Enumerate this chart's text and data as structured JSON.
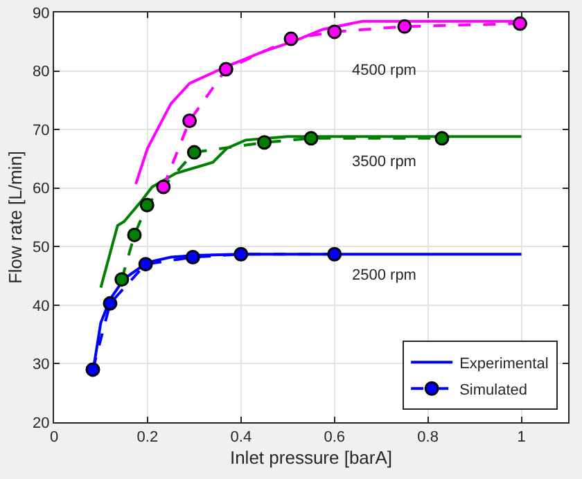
{
  "chart_data": {
    "type": "line",
    "xlabel": "Inlet pressure [barA]",
    "ylabel": "Flow rate [L/min]",
    "xlim": [
      0,
      1.1
    ],
    "xticks": [
      0,
      0.2,
      0.4,
      0.6,
      0.8,
      1
    ],
    "ylim": [
      20,
      90
    ],
    "yticks": [
      20,
      30,
      40,
      50,
      60,
      70,
      80,
      90
    ],
    "grid": true,
    "legend": "bottom right",
    "series": [
      {
        "name": "Experimental",
        "color": "#0000ff",
        "line_style": "solid",
        "marker": "none",
        "x": [
          0.085,
          0.1,
          0.12,
          0.15,
          0.2,
          0.25,
          0.3,
          0.4,
          0.6,
          1.0
        ],
        "values": [
          29.5,
          37,
          41,
          44.5,
          47.3,
          48.2,
          48.5,
          48.7,
          48.7,
          48.7
        ]
      },
      {
        "name": "Simulated",
        "color": "#0000ff",
        "line_style": "dashed",
        "marker": "circle",
        "x": [
          0.083,
          0.12,
          0.196,
          0.297,
          0.4,
          0.6
        ],
        "values": [
          29,
          40.3,
          47,
          48.2,
          48.7,
          48.7
        ]
      },
      {
        "color": "#008000",
        "line_style": "solid",
        "marker": "none",
        "x": [
          0.1,
          0.136,
          0.15,
          0.187,
          0.21,
          0.26,
          0.34,
          0.37,
          0.41,
          0.5,
          1.0
        ],
        "values": [
          43,
          53.6,
          54.3,
          57.8,
          60.2,
          62.5,
          64.4,
          66.8,
          68.2,
          68.8,
          68.8
        ]
      },
      {
        "color": "#008000",
        "line_style": "dashed",
        "marker": "circle",
        "x": [
          0.145,
          0.172,
          0.199,
          0.3,
          0.45,
          0.55,
          0.83
        ],
        "values": [
          44.4,
          52,
          57.1,
          66.1,
          67.8,
          68.5,
          68.5
        ]
      },
      {
        "color": "#ff00ff",
        "line_style": "solid",
        "marker": "none",
        "x": [
          0.175,
          0.2,
          0.25,
          0.29,
          0.37,
          0.45,
          0.51,
          0.575,
          0.66,
          1.0
        ],
        "values": [
          60.7,
          66.8,
          74.4,
          77.9,
          80.8,
          83.4,
          85,
          87.1,
          88.5,
          88.5
        ]
      },
      {
        "color": "#ff00ff",
        "line_style": "dashed",
        "marker": "circle",
        "x": [
          0.234,
          0.29,
          0.368,
          0.507,
          0.6,
          0.75,
          0.997
        ],
        "values": [
          60.2,
          71.5,
          80.3,
          85.5,
          86.7,
          87.6,
          88.1
        ]
      }
    ],
    "annotations": [
      "4500 rpm",
      "3500 rpm",
      "2500 rpm"
    ]
  }
}
